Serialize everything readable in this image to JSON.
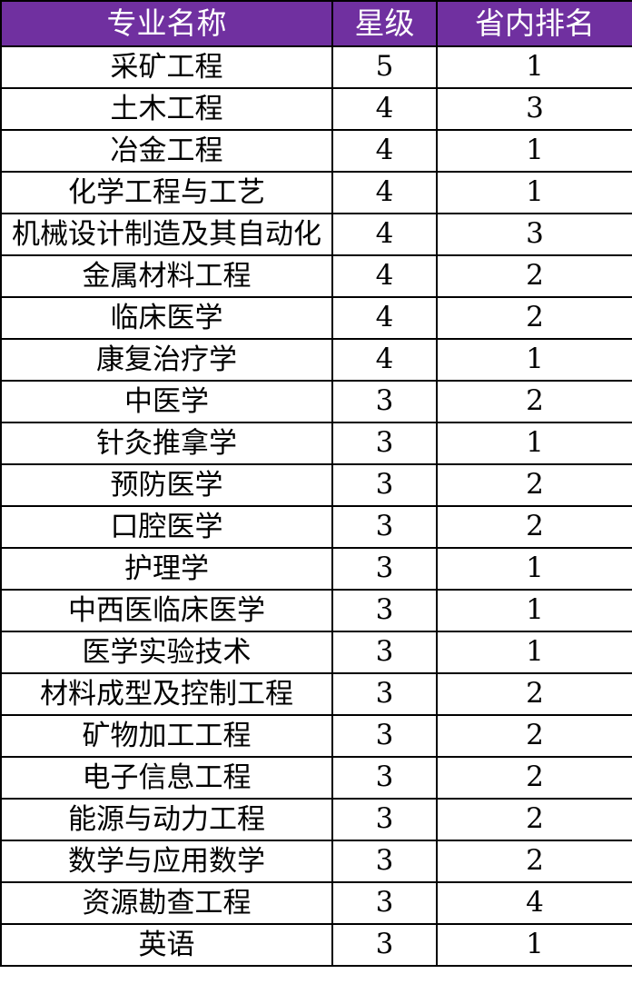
{
  "header": {
    "major": "专业名称",
    "stars": "星级",
    "rank": "省内排名"
  },
  "header_color": "#7030A0",
  "rows": [
    {
      "major": "采矿工程",
      "stars": "5",
      "rank": "1"
    },
    {
      "major": "土木工程",
      "stars": "4",
      "rank": "3"
    },
    {
      "major": "冶金工程",
      "stars": "4",
      "rank": "1"
    },
    {
      "major": "化学工程与工艺",
      "stars": "4",
      "rank": "1"
    },
    {
      "major": "机械设计制造及其自动化",
      "stars": "4",
      "rank": "3"
    },
    {
      "major": "金属材料工程",
      "stars": "4",
      "rank": "2"
    },
    {
      "major": "临床医学",
      "stars": "4",
      "rank": "2"
    },
    {
      "major": "康复治疗学",
      "stars": "4",
      "rank": "1"
    },
    {
      "major": "中医学",
      "stars": "3",
      "rank": "2"
    },
    {
      "major": "针灸推拿学",
      "stars": "3",
      "rank": "1"
    },
    {
      "major": "预防医学",
      "stars": "3",
      "rank": "2"
    },
    {
      "major": "口腔医学",
      "stars": "3",
      "rank": "2"
    },
    {
      "major": "护理学",
      "stars": "3",
      "rank": "1"
    },
    {
      "major": "中西医临床医学",
      "stars": "3",
      "rank": "1"
    },
    {
      "major": "医学实验技术",
      "stars": "3",
      "rank": "1"
    },
    {
      "major": "材料成型及控制工程",
      "stars": "3",
      "rank": "2"
    },
    {
      "major": "矿物加工工程",
      "stars": "3",
      "rank": "2"
    },
    {
      "major": "电子信息工程",
      "stars": "3",
      "rank": "2"
    },
    {
      "major": "能源与动力工程",
      "stars": "3",
      "rank": "2"
    },
    {
      "major": "数学与应用数学",
      "stars": "3",
      "rank": "2"
    },
    {
      "major": "资源勘查工程",
      "stars": "3",
      "rank": "4"
    },
    {
      "major": "英语",
      "stars": "3",
      "rank": "1"
    }
  ]
}
